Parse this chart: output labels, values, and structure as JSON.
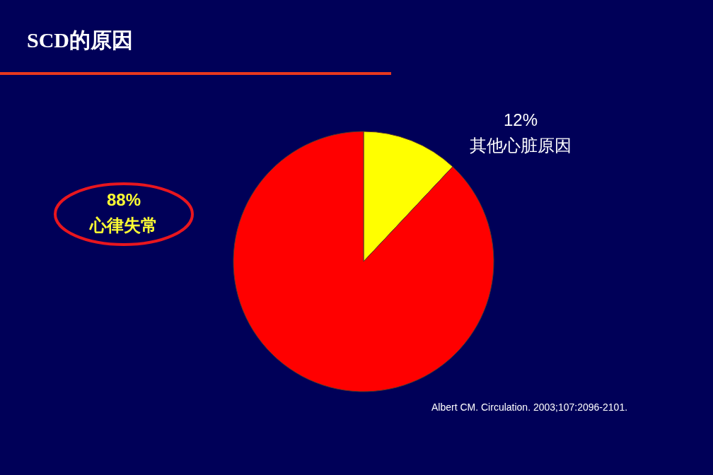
{
  "chart_data": {
    "type": "pie",
    "title": "SCD的原因",
    "categories": [
      "其他心脏原因",
      "心律失常"
    ],
    "values": [
      12,
      88
    ],
    "colors": [
      "#ffff00",
      "#ff0000"
    ],
    "value_labels": [
      "12%",
      "88%"
    ],
    "annotations": [
      "Albert CM. Circulation. 2003;107:2096-2101."
    ]
  }
}
